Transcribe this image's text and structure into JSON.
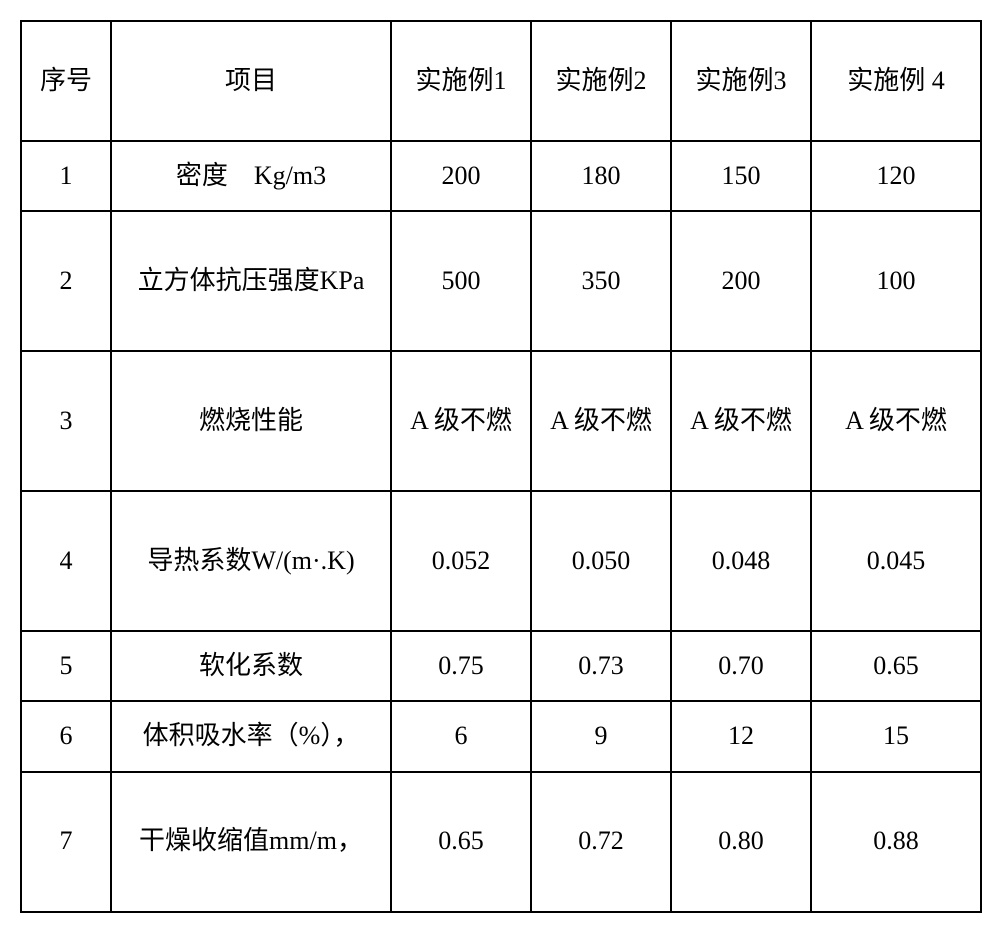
{
  "table": {
    "header": {
      "seq": "序号",
      "item": "项目",
      "ex1": "实施例1",
      "ex2": "实施例2",
      "ex3": "实施例3",
      "ex4": "实施例 4"
    },
    "rows": [
      {
        "seq": "1",
        "item": "密度　Kg/m3",
        "ex1": "200",
        "ex2": "180",
        "ex3": "150",
        "ex4": "120"
      },
      {
        "seq": "2",
        "item": "立方体抗压强度KPa",
        "ex1": "500",
        "ex2": "350",
        "ex3": "200",
        "ex4": "100"
      },
      {
        "seq": "3",
        "item": "燃烧性能",
        "ex1": "A 级不燃",
        "ex2": "A 级不燃",
        "ex3": "A 级不燃",
        "ex4": "A 级不燃"
      },
      {
        "seq": "4",
        "item": "导热系数W/(m·.K)",
        "ex1": "0.052",
        "ex2": "0.050",
        "ex3": "0.048",
        "ex4": "0.045"
      },
      {
        "seq": "5",
        "item": "软化系数",
        "ex1": "0.75",
        "ex2": "0.73",
        "ex3": "0.70",
        "ex4": "0.65"
      },
      {
        "seq": "6",
        "item": "体积吸水率（%），",
        "ex1": "6",
        "ex2": "9",
        "ex3": "12",
        "ex4": "15"
      },
      {
        "seq": "7",
        "item": "干燥收缩值mm/m，",
        "ex1": "0.65",
        "ex2": "0.72",
        "ex3": "0.80",
        "ex4": "0.88"
      }
    ],
    "style": {
      "border_color": "#000000",
      "border_width": 2,
      "background_color": "#ffffff",
      "text_color": "#000000",
      "font_size": 26,
      "font_family": "SimSun, KaiTi, serif"
    }
  }
}
